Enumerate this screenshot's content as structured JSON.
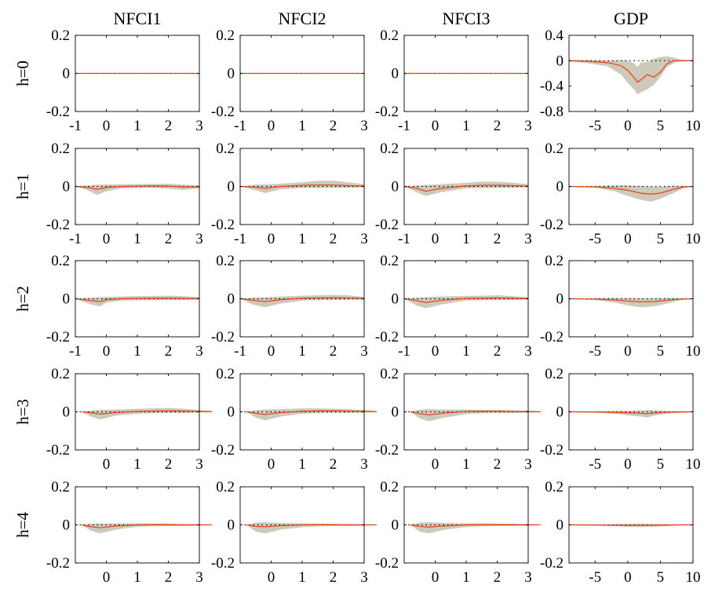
{
  "chart_data": {
    "type": "line",
    "layout": "5x4 small multiples; rows = horizon h, columns = variable",
    "columns": [
      {
        "title": "NFCI1",
        "xlim": [
          -1,
          3
        ]
      },
      {
        "title": "NFCI2",
        "xlim": [
          -1,
          3
        ]
      },
      {
        "title": "NFCI3",
        "xlim": [
          -1,
          3
        ]
      },
      {
        "title": "GDP",
        "xlim": [
          -9,
          10
        ]
      }
    ],
    "rows": [
      {
        "label": "h=0",
        "x_ticks_nfci": [
          "-1",
          "0",
          "1",
          "2",
          "3"
        ],
        "x_ticks_gdp": [
          "-5",
          "0",
          "5",
          "10"
        ]
      },
      {
        "label": "h=1",
        "x_ticks_nfci": [
          "-1",
          "0",
          "1",
          "2",
          "3"
        ],
        "x_ticks_gdp": [
          "-5",
          "0",
          "5",
          "10"
        ]
      },
      {
        "label": "h=2",
        "x_ticks_nfci": [
          "-1",
          "0",
          "1",
          "2",
          "3"
        ],
        "x_ticks_gdp": [
          "-5",
          "0",
          "5",
          "10"
        ]
      },
      {
        "label": "h=3",
        "x_ticks_nfci": [
          "0",
          "1",
          "2",
          "3"
        ],
        "x_ticks_gdp": [
          "-5",
          "0",
          "5",
          "10"
        ]
      },
      {
        "label": "h=4",
        "x_ticks_nfci": [
          "0",
          "1",
          "2",
          "3"
        ],
        "x_ticks_gdp": [
          "-5",
          "0",
          "5",
          "10"
        ]
      }
    ],
    "y_ticks_default": [
      "0.2",
      "0",
      "-0.2"
    ],
    "y_ticks_gdp_h0": [
      "0.4",
      "0",
      "-0.4",
      "-0.8"
    ],
    "ylim_default": [
      -0.2,
      0.2
    ],
    "ylim_gdp_h0": [
      -0.8,
      0.4
    ],
    "reference_line": "dotted zero line",
    "colors": {
      "estimate": "#e8431c",
      "band": "#cdcabb",
      "zero": "#000000"
    },
    "panels": [
      [
        {
          "x": [
            -1.0,
            3.0
          ],
          "y": [
            0,
            0
          ],
          "lo": [
            0,
            0
          ],
          "hi": [
            0,
            0
          ]
        },
        {
          "x": [
            -1.0,
            3.0
          ],
          "y": [
            0,
            0
          ],
          "lo": [
            -0.002,
            -0.002
          ],
          "hi": [
            0.002,
            0.002
          ]
        },
        {
          "x": [
            -1.0,
            3.0
          ],
          "y": [
            0,
            0
          ],
          "lo": [
            -0.002,
            -0.002
          ],
          "hi": [
            0.002,
            0.002
          ]
        },
        {
          "x": [
            -9.0,
            -6.0,
            -3.0,
            -1.0,
            0.0,
            1.0,
            1.5,
            2.0,
            3.0,
            4.0,
            5.0,
            6.0,
            7.0,
            8.0,
            10.0
          ],
          "y": [
            0,
            -0.01,
            -0.03,
            -0.08,
            -0.15,
            -0.27,
            -0.34,
            -0.3,
            -0.22,
            -0.26,
            -0.18,
            -0.05,
            0.0,
            0.0,
            0.0
          ],
          "lo": [
            -0.01,
            -0.04,
            -0.09,
            -0.22,
            -0.35,
            -0.46,
            -0.53,
            -0.5,
            -0.45,
            -0.38,
            -0.25,
            -0.1,
            -0.04,
            -0.01,
            0.0
          ],
          "hi": [
            0.01,
            0.01,
            0.0,
            0.01,
            0.0,
            -0.04,
            -0.1,
            -0.03,
            -0.02,
            0.03,
            0.06,
            0.07,
            0.05,
            0.02,
            0.0
          ]
        }
      ],
      [
        {
          "x": [
            -1.0,
            -0.6,
            -0.3,
            0.0,
            0.5,
            1.0,
            1.5,
            2.0,
            2.5,
            3.0
          ],
          "y": [
            0,
            -0.005,
            -0.015,
            -0.005,
            0.0,
            0.002,
            0.003,
            0.002,
            -0.003,
            -0.002
          ],
          "lo": [
            0,
            -0.02,
            -0.045,
            -0.025,
            -0.01,
            -0.008,
            -0.008,
            -0.012,
            -0.018,
            -0.01
          ],
          "hi": [
            0,
            0.005,
            0.01,
            0.01,
            0.012,
            0.012,
            0.013,
            0.014,
            0.01,
            0.005
          ]
        },
        {
          "x": [
            -1.0,
            -0.5,
            -0.2,
            0.3,
            1.0,
            1.5,
            2.0,
            2.5,
            3.0
          ],
          "y": [
            0,
            -0.004,
            -0.01,
            0.0,
            0.006,
            0.008,
            0.008,
            0.004,
            0.002
          ],
          "lo": [
            0,
            -0.02,
            -0.035,
            -0.015,
            -0.008,
            -0.008,
            -0.006,
            -0.006,
            -0.004
          ],
          "hi": [
            0,
            0.01,
            0.01,
            0.015,
            0.022,
            0.03,
            0.03,
            0.022,
            0.012
          ]
        },
        {
          "x": [
            -1.0,
            -0.6,
            -0.3,
            0.2,
            1.0,
            1.5,
            2.0,
            2.5,
            3.0
          ],
          "y": [
            0,
            -0.01,
            -0.025,
            -0.01,
            0.003,
            0.006,
            0.006,
            0.004,
            0.002
          ],
          "lo": [
            0,
            -0.03,
            -0.05,
            -0.03,
            -0.01,
            -0.008,
            -0.008,
            -0.008,
            -0.004
          ],
          "hi": [
            0,
            0.005,
            0.008,
            0.012,
            0.02,
            0.025,
            0.025,
            0.02,
            0.012
          ]
        },
        {
          "x": [
            -9.0,
            -5.0,
            -2.0,
            0.0,
            2.0,
            3.5,
            5.0,
            7.0,
            8.5,
            10.0
          ],
          "y": [
            0,
            -0.002,
            -0.01,
            -0.02,
            -0.035,
            -0.04,
            -0.035,
            -0.015,
            -0.003,
            0.0
          ],
          "lo": [
            0,
            -0.006,
            -0.025,
            -0.05,
            -0.07,
            -0.08,
            -0.065,
            -0.035,
            -0.01,
            0.0
          ],
          "hi": [
            0,
            0.003,
            0.006,
            0.006,
            0.002,
            0.0,
            -0.002,
            0.004,
            0.003,
            0.0
          ]
        }
      ],
      [
        {
          "x": [
            -1.0,
            -0.5,
            -0.2,
            0.0,
            0.5,
            1.0,
            1.5,
            2.0,
            2.5,
            3.0
          ],
          "y": [
            0,
            -0.01,
            -0.015,
            -0.005,
            0.0,
            0.002,
            0.003,
            0.003,
            0.002,
            0.001
          ],
          "lo": [
            0,
            -0.03,
            -0.04,
            -0.02,
            -0.01,
            -0.008,
            -0.008,
            -0.006,
            -0.006,
            -0.004
          ],
          "hi": [
            0,
            0.005,
            0.008,
            0.01,
            0.012,
            0.014,
            0.015,
            0.016,
            0.014,
            0.008
          ]
        },
        {
          "x": [
            -1.0,
            -0.6,
            -0.2,
            0.3,
            1.0,
            1.5,
            2.0,
            2.5,
            3.0
          ],
          "y": [
            0,
            -0.008,
            -0.015,
            -0.005,
            0.003,
            0.004,
            0.005,
            0.004,
            0.002
          ],
          "lo": [
            0,
            -0.03,
            -0.045,
            -0.025,
            -0.01,
            -0.008,
            -0.006,
            -0.006,
            -0.004
          ],
          "hi": [
            0,
            0.005,
            0.008,
            0.012,
            0.016,
            0.018,
            0.02,
            0.018,
            0.01
          ]
        },
        {
          "x": [
            -1.0,
            -0.6,
            -0.3,
            0.2,
            1.0,
            1.5,
            2.0,
            2.5,
            3.0
          ],
          "y": [
            0,
            -0.01,
            -0.02,
            -0.008,
            0.002,
            0.003,
            0.004,
            0.003,
            0.001
          ],
          "lo": [
            0,
            -0.035,
            -0.05,
            -0.03,
            -0.01,
            -0.008,
            -0.006,
            -0.006,
            -0.004
          ],
          "hi": [
            0,
            0.005,
            0.008,
            0.012,
            0.015,
            0.016,
            0.018,
            0.014,
            0.008
          ]
        },
        {
          "x": [
            -9.0,
            -5.0,
            -2.0,
            0.0,
            2.0,
            4.0,
            6.0,
            8.0,
            10.0
          ],
          "y": [
            0,
            -0.002,
            -0.006,
            -0.012,
            -0.016,
            -0.015,
            -0.008,
            -0.002,
            0.0
          ],
          "lo": [
            0,
            -0.006,
            -0.02,
            -0.035,
            -0.045,
            -0.04,
            -0.025,
            -0.008,
            0.0
          ],
          "hi": [
            0,
            0.002,
            0.004,
            0.004,
            0.002,
            0.003,
            0.004,
            0.002,
            0.0
          ]
        }
      ],
      [
        {
          "x": [
            -0.8,
            -0.5,
            -0.2,
            0.3,
            1.0,
            1.5,
            2.0,
            2.5,
            3.0,
            3.4
          ],
          "y": [
            0,
            -0.005,
            -0.012,
            -0.004,
            0.002,
            0.004,
            0.005,
            0.004,
            0.002,
            0.001
          ],
          "lo": [
            0,
            -0.025,
            -0.04,
            -0.02,
            -0.01,
            -0.008,
            -0.006,
            -0.006,
            -0.004,
            -0.002
          ],
          "hi": [
            0,
            0.006,
            0.01,
            0.012,
            0.016,
            0.018,
            0.02,
            0.016,
            0.01,
            0.004
          ]
        },
        {
          "x": [
            -0.8,
            -0.5,
            -0.2,
            0.3,
            1.0,
            1.5,
            2.0,
            2.5,
            3.0,
            3.4
          ],
          "y": [
            0,
            -0.008,
            -0.014,
            -0.004,
            0.003,
            0.005,
            0.005,
            0.004,
            0.002,
            0.001
          ],
          "lo": [
            0,
            -0.03,
            -0.045,
            -0.025,
            -0.01,
            -0.008,
            -0.006,
            -0.006,
            -0.004,
            -0.002
          ],
          "hi": [
            0,
            0.008,
            0.012,
            0.014,
            0.018,
            0.018,
            0.016,
            0.014,
            0.01,
            0.004
          ]
        },
        {
          "x": [
            -0.8,
            -0.5,
            -0.2,
            0.3,
            1.0,
            1.5,
            2.0,
            2.5,
            3.0,
            3.4
          ],
          "y": [
            0,
            -0.01,
            -0.016,
            -0.006,
            0.002,
            0.003,
            0.003,
            0.002,
            0.001,
            0.0
          ],
          "lo": [
            0,
            -0.035,
            -0.05,
            -0.03,
            -0.012,
            -0.008,
            -0.006,
            -0.006,
            -0.004,
            -0.002
          ],
          "hi": [
            0,
            0.012,
            0.014,
            0.012,
            0.012,
            0.01,
            0.01,
            0.008,
            0.006,
            0.003
          ]
        },
        {
          "x": [
            -9.0,
            -5.0,
            -2.0,
            0.0,
            2.0,
            3.0,
            4.0,
            6.0,
            8.0,
            10.0
          ],
          "y": [
            0,
            -0.001,
            -0.003,
            -0.005,
            -0.008,
            -0.01,
            -0.006,
            -0.002,
            -0.001,
            0.0
          ],
          "lo": [
            0,
            -0.004,
            -0.01,
            -0.018,
            -0.025,
            -0.03,
            -0.02,
            -0.01,
            -0.004,
            0.0
          ],
          "hi": [
            0,
            0.002,
            0.004,
            0.005,
            0.006,
            0.01,
            0.008,
            0.004,
            0.002,
            0.0
          ]
        }
      ],
      [
        {
          "x": [
            -0.8,
            -0.5,
            -0.2,
            0.3,
            1.0,
            1.5,
            2.0,
            2.5,
            3.0,
            3.4
          ],
          "y": [
            0,
            -0.01,
            -0.015,
            -0.006,
            0.0,
            0.001,
            0.001,
            0.0,
            0.0,
            0.0
          ],
          "lo": [
            0,
            -0.03,
            -0.045,
            -0.025,
            -0.01,
            -0.008,
            -0.006,
            -0.006,
            -0.004,
            -0.002
          ],
          "hi": [
            0,
            0.006,
            0.008,
            0.008,
            0.008,
            0.007,
            0.006,
            0.004,
            0.003,
            0.002
          ]
        },
        {
          "x": [
            -0.8,
            -0.5,
            -0.2,
            0.3,
            1.0,
            1.5,
            2.0,
            2.5,
            3.0,
            3.4
          ],
          "y": [
            0,
            -0.008,
            -0.01,
            -0.004,
            0.0,
            0.001,
            0.001,
            0.0,
            0.0,
            0.0
          ],
          "lo": [
            0,
            -0.035,
            -0.045,
            -0.025,
            -0.012,
            -0.008,
            -0.006,
            -0.006,
            -0.004,
            -0.002
          ],
          "hi": [
            0,
            0.012,
            0.014,
            0.01,
            0.008,
            0.006,
            0.005,
            0.004,
            0.003,
            0.002
          ]
        },
        {
          "x": [
            -0.8,
            -0.5,
            -0.2,
            0.3,
            1.0,
            1.5,
            2.0,
            2.5,
            3.0,
            3.4
          ],
          "y": [
            0,
            -0.008,
            -0.012,
            -0.005,
            0.0,
            0.001,
            0.001,
            0.001,
            0.0,
            0.0
          ],
          "lo": [
            0,
            -0.035,
            -0.045,
            -0.025,
            -0.012,
            -0.008,
            -0.006,
            -0.006,
            -0.004,
            -0.002
          ],
          "hi": [
            0,
            0.012,
            0.014,
            0.01,
            0.008,
            0.007,
            0.006,
            0.005,
            0.004,
            0.002
          ]
        },
        {
          "x": [
            -9.0,
            -5.0,
            -2.0,
            0.0,
            2.0,
            4.0,
            6.0,
            8.0,
            10.0
          ],
          "y": [
            0,
            -0.001,
            -0.002,
            -0.003,
            -0.002,
            -0.002,
            -0.001,
            0.0,
            0.0
          ],
          "lo": [
            0,
            -0.003,
            -0.006,
            -0.01,
            -0.012,
            -0.01,
            -0.006,
            -0.002,
            0.0
          ],
          "hi": [
            0,
            0.002,
            0.004,
            0.005,
            0.006,
            0.005,
            0.003,
            0.001,
            0.0
          ]
        }
      ]
    ]
  }
}
